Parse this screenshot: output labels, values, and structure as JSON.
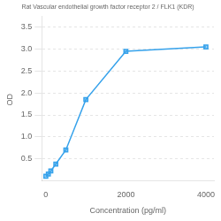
{
  "chart_data": {
    "type": "line",
    "title": "Rat Vascular endothelial growth factor receptor 2 / FLK1 (KDR)",
    "xlabel": "Concentration (pg/ml)",
    "ylabel": "OD ",
    "x": [
      0,
      62.5,
      125,
      250,
      500,
      1000,
      2000,
      4000
    ],
    "values": [
      0.1,
      0.15,
      0.22,
      0.38,
      0.7,
      1.85,
      2.95,
      3.05
    ],
    "xlim": [
      -100,
      4200
    ],
    "ylim": [
      0,
      3.75
    ],
    "xticks": [
      0,
      2000,
      4000
    ],
    "yticks": [
      0.5,
      {
        "value": 1.0,
        "label": "1.0"
      },
      1.5,
      {
        "value": 2.0,
        "label": "2.0"
      },
      2.5,
      {
        "value": 3.0,
        "label": "3.0"
      },
      3.5
    ],
    "grid": "y",
    "marker": "square"
  }
}
